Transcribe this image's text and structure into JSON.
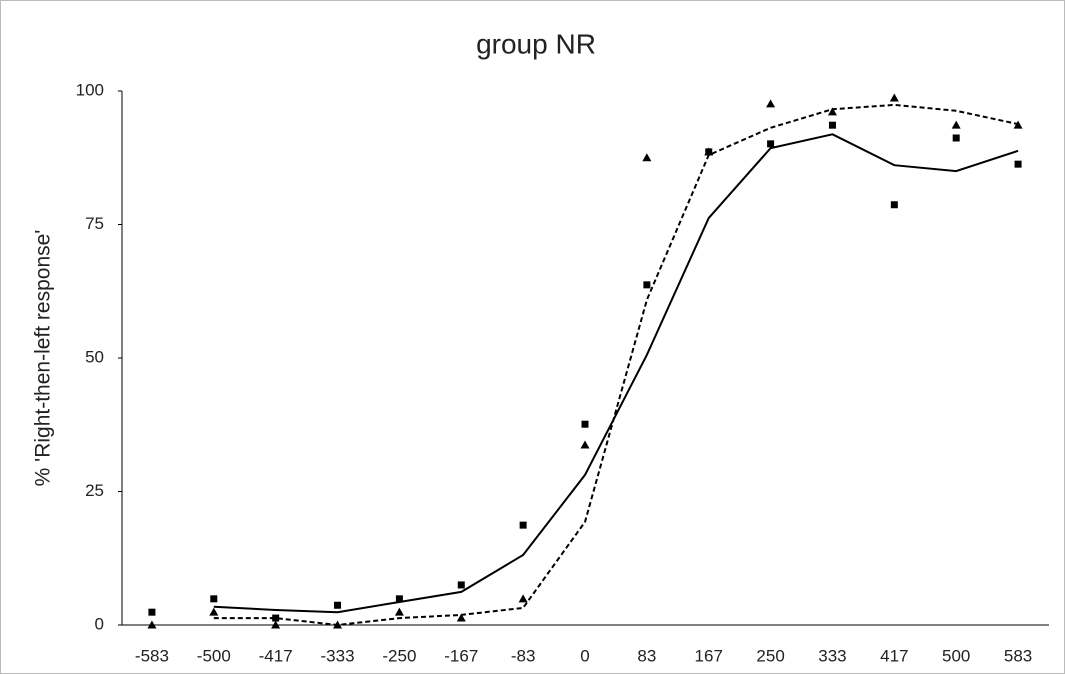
{
  "chart_data": {
    "type": "line",
    "title": "group NR",
    "y_label": "% 'Right-then-left response'",
    "categories": [
      "-583",
      "-500",
      "-417",
      "-333",
      "-250",
      "-167",
      "-83",
      "0",
      "83",
      "167",
      "250",
      "333",
      "417",
      "500",
      "583"
    ],
    "ylim": [
      0,
      100
    ],
    "yticks": [
      0,
      25,
      50,
      75,
      100
    ],
    "grid": false,
    "series": [
      {
        "color": "#000000",
        "marker": "square",
        "values": [
          2.4,
          4.9,
          1.3,
          3.7,
          4.9,
          7.5,
          18.7,
          37.6,
          63.7,
          88.6,
          90.1,
          93.6,
          78.7,
          91.2,
          86.3
        ]
      },
      {
        "color": "#000000",
        "marker": "triangle",
        "values": [
          0,
          2.4,
          0,
          0,
          2.4,
          1.3,
          4.9,
          33.7,
          87.5,
          88.6,
          97.6,
          96.1,
          98.7,
          93.6,
          93.6
        ]
      },
      {
        "color": "#000000",
        "line": "solid",
        "values": [
          null,
          3.4,
          2.8,
          2.4,
          4.3,
          6.2,
          13.1,
          28.1,
          50.6,
          76.2,
          89.3,
          91.9,
          86.1,
          85.0,
          88.8
        ]
      },
      {
        "color": "#000000",
        "line": "dashed",
        "values": [
          null,
          1.3,
          1.3,
          0,
          1.3,
          1.9,
          3.2,
          19.3,
          60.9,
          88.0,
          93.1,
          96.6,
          97.4,
          96.3,
          93.8
        ]
      }
    ]
  }
}
